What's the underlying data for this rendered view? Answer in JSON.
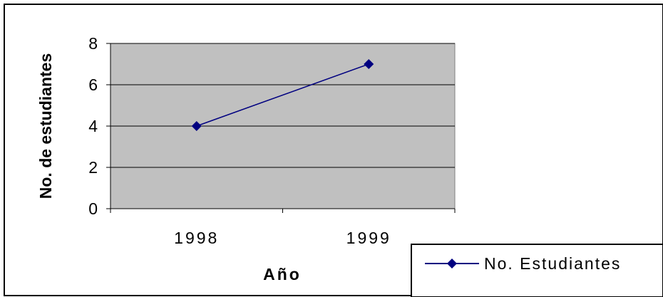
{
  "chart_data": {
    "type": "line",
    "title": "",
    "xlabel": "Año",
    "ylabel": "No. de estudiantes",
    "categories": [
      "1998",
      "1999"
    ],
    "series": [
      {
        "name": "No. Estudiantes",
        "values": [
          4,
          7
        ],
        "color": "#000080",
        "marker": "diamond"
      }
    ],
    "ylim": [
      0,
      8
    ],
    "yticks": [
      "0",
      "2",
      "4",
      "6",
      "8"
    ],
    "grid": true,
    "plot_background": "#c0c0c0",
    "legend_position": "bottom-right"
  }
}
